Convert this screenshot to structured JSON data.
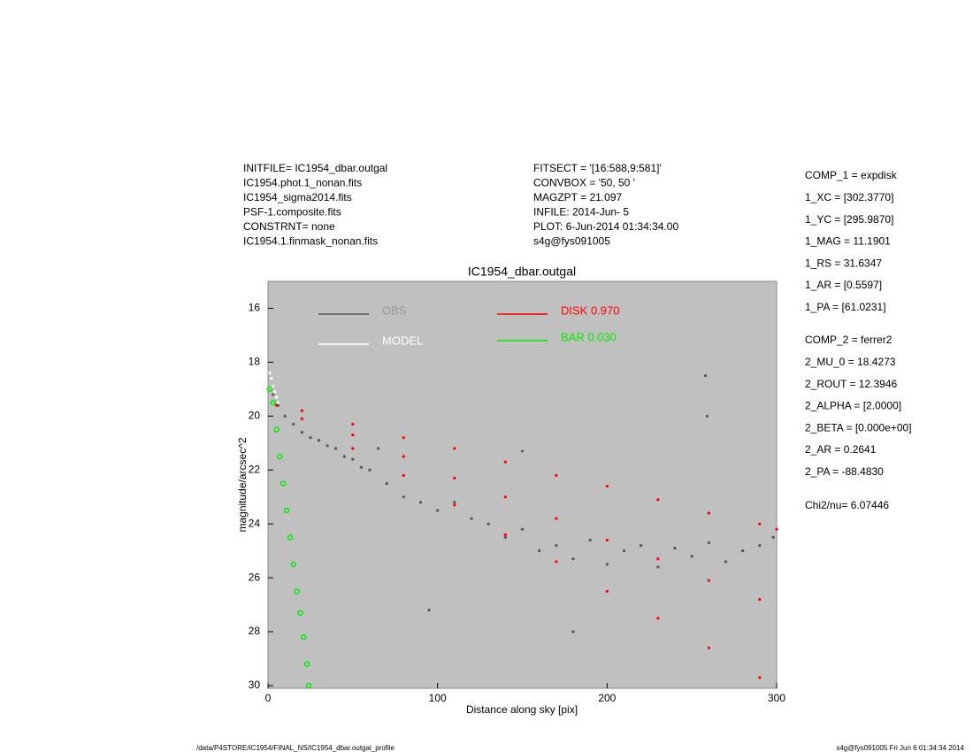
{
  "header_left": [
    "INITFILE= IC1954_dbar.outgal",
    "IC1954.phot.1_nonan.fits",
    "IC1954_sigma2014.fits",
    "PSF-1.composite.fits",
    "CONSTRNT= none",
    "IC1954.1.finmask_nonan.fits"
  ],
  "header_middle": [
    "FITSECT = '[16:588,9:581]'",
    "CONVBOX = '50, 50  '",
    "MAGZPT  =              21.097",
    "INFILE: 2014-Jun- 5",
    "PLOT:  6-Jun-2014 01:34:34.00",
    "s4g@fys091005"
  ],
  "right_panel": [
    [
      "COMP_1  = expdisk",
      "1_XC    = [302.3770]",
      "1_YC    = [295.9870]",
      "1_MAG   = 11.1901",
      "1_RS    = 31.6347",
      "1_AR    = [0.5597]",
      "1_PA    = [61.0231]"
    ],
    [
      "COMP_2  = ferrer2",
      "2_MU_0  = 18.4273",
      "2_ROUT  = 12.3946",
      "2_ALPHA = [2.0000]",
      "2_BETA  = [0.000e+00]",
      "2_AR    = 0.2641",
      "2_PA    = -88.4830"
    ],
    [
      "Chi2/nu=      6.07446"
    ]
  ],
  "footer_left": "/data/P4STORE/IC1954/FINAL_NS/IC1954_dbar.outgal_profile",
  "footer_right": "s4g@fys091005  Fri Jun  6 01:34:34 2014",
  "chart_data": {
    "type": "scatter",
    "title": "IC1954_dbar.outgal",
    "x_label": "Distance along sky [pix]",
    "y_label": "magnitude/arcsec^2",
    "xlim": [
      0,
      300
    ],
    "xticks": [
      0,
      100,
      200,
      300
    ],
    "ylim": [
      30.1,
      15
    ],
    "yticks": [
      16,
      18,
      20,
      22,
      24,
      26,
      28,
      30
    ],
    "background": "#c0c0c0",
    "series": [
      {
        "name": "OBS",
        "color": "#555555",
        "x": [
          3,
          6,
          10,
          15,
          20,
          25,
          30,
          35,
          40,
          45,
          50,
          55,
          60,
          70,
          80,
          90,
          100,
          110,
          120,
          130,
          140,
          150,
          160,
          170,
          180,
          190,
          200,
          210,
          220,
          230,
          240,
          250,
          260,
          270,
          280,
          290,
          298,
          258,
          259,
          180,
          65,
          95,
          150
        ],
        "values": [
          19.2,
          19.6,
          20.0,
          20.3,
          20.6,
          20.8,
          20.9,
          21.1,
          21.2,
          21.5,
          21.6,
          21.9,
          22.0,
          22.5,
          23.0,
          23.2,
          23.5,
          23.2,
          23.8,
          24.0,
          24.5,
          24.2,
          25.0,
          24.8,
          25.3,
          24.6,
          25.5,
          25.0,
          24.8,
          25.6,
          24.9,
          25.2,
          24.7,
          25.4,
          25.0,
          24.8,
          24.5,
          18.5,
          20.0,
          28.0,
          21.2,
          27.2,
          21.3
        ]
      },
      {
        "name": "MODEL",
        "color": "#ffffff",
        "x": [
          1,
          2,
          3,
          4,
          5,
          6
        ],
        "values": [
          18.4,
          18.6,
          18.9,
          19.1,
          19.3,
          19.5
        ]
      },
      {
        "name": "DISK  0.970",
        "color": "#ff0000",
        "x": [
          5,
          20,
          50,
          80,
          110,
          140,
          170,
          200,
          230,
          260,
          290,
          300,
          20,
          50,
          80,
          110,
          140,
          170,
          200,
          230,
          260,
          290,
          50,
          80,
          110,
          140,
          170,
          200,
          230,
          260,
          290
        ],
        "values": [
          19.6,
          19.8,
          20.3,
          20.8,
          21.2,
          21.7,
          22.2,
          22.6,
          23.1,
          23.6,
          24.0,
          24.2,
          20.1,
          21.2,
          22.2,
          23.3,
          24.4,
          25.4,
          26.5,
          27.5,
          28.6,
          29.7,
          20.7,
          21.5,
          22.3,
          23.0,
          23.8,
          24.6,
          25.3,
          26.1,
          26.8
        ]
      },
      {
        "name": "BAR  0.030",
        "color": "#00ee00",
        "x": [
          1,
          3,
          5,
          7,
          9,
          11,
          13,
          15,
          17,
          19,
          21,
          23,
          24
        ],
        "values": [
          19.0,
          19.5,
          20.5,
          21.5,
          22.5,
          23.5,
          24.5,
          25.5,
          26.5,
          27.3,
          28.2,
          29.2,
          30.0
        ]
      }
    ]
  }
}
